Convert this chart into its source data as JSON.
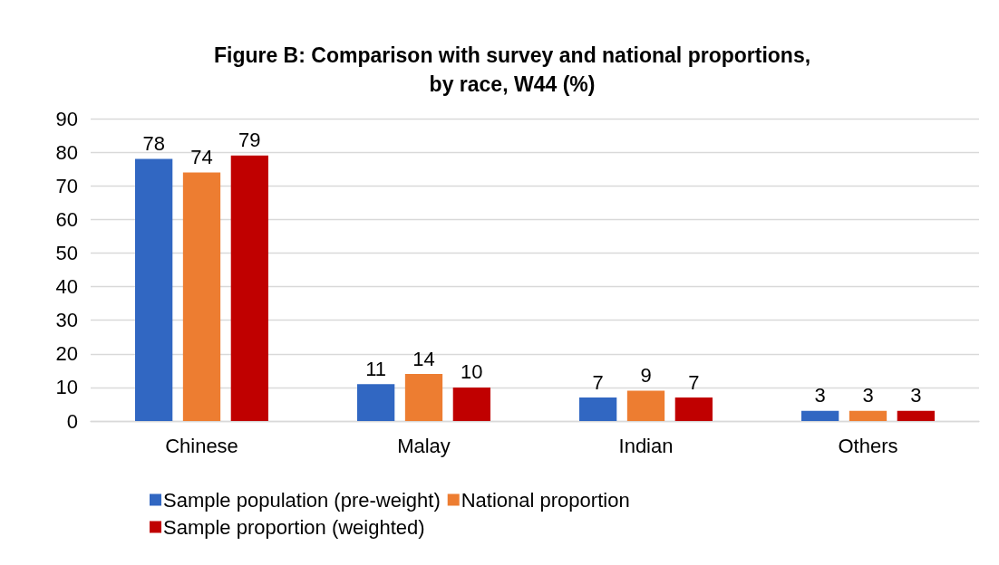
{
  "chart_data": {
    "type": "bar",
    "title": "Figure B: Comparison with survey and national proportions,\nby race, W44 (%)",
    "categories": [
      "Chinese",
      "Malay",
      "Indian",
      "Others"
    ],
    "series": [
      {
        "name": "Sample population (pre-weight)",
        "color": "#3167c2",
        "values": [
          78,
          11,
          7,
          3
        ]
      },
      {
        "name": "National proportion",
        "color": "#ed7d31",
        "values": [
          74,
          14,
          9,
          3
        ]
      },
      {
        "name": "Sample proportion (weighted)",
        "color": "#c00000",
        "values": [
          79,
          10,
          7,
          3
        ]
      }
    ],
    "ylim": [
      0,
      90
    ],
    "yticks": [
      0,
      10,
      20,
      30,
      40,
      50,
      60,
      70,
      80,
      90
    ],
    "grid": "y",
    "legend": "bottom",
    "data_labels": true
  }
}
